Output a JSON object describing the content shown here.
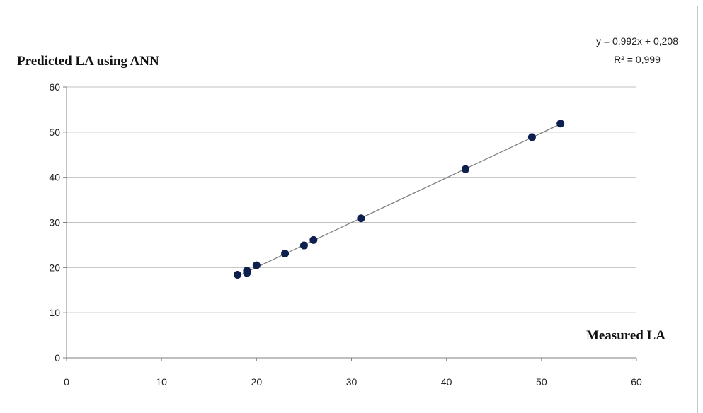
{
  "chart_data": {
    "type": "scatter",
    "xlabel": "Measured LA",
    "ylabel": "Predicted LA using ANN",
    "xlim": [
      0,
      60
    ],
    "ylim": [
      0,
      60
    ],
    "xticks": [
      "0",
      "10",
      "20",
      "30",
      "40",
      "50",
      "60"
    ],
    "yticks": [
      "0",
      "10",
      "20",
      "30",
      "40",
      "50",
      "60"
    ],
    "grid": "horizontal",
    "series": [
      {
        "x": [
          18,
          19,
          19,
          20,
          23,
          25,
          26,
          31,
          42,
          49,
          52
        ],
        "y": [
          18.4,
          18.8,
          19.3,
          20.5,
          23.1,
          24.9,
          26.1,
          30.9,
          41.8,
          48.9,
          51.9
        ]
      }
    ],
    "trendline": {
      "type": "linear",
      "slope": 0.992,
      "intercept": 0.208,
      "x_range": [
        18,
        52
      ],
      "equation": "y = 0,992x + 0,208",
      "r_squared": "R² = 0,999"
    },
    "colors": {
      "marker": "#0d1f4f",
      "trendline": "#7f7f7f",
      "grid": "#c0c0c0",
      "axis": "#7f7f7f"
    }
  }
}
